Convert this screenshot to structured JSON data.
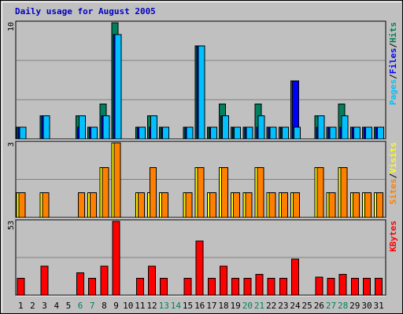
{
  "chart_data": {
    "type": "bar",
    "title": "Daily usage for August 2005",
    "categories": [
      "1",
      "2",
      "3",
      "4",
      "5",
      "6",
      "7",
      "8",
      "9",
      "10",
      "11",
      "12",
      "13",
      "14",
      "15",
      "16",
      "17",
      "18",
      "19",
      "20",
      "21",
      "22",
      "23",
      "24",
      "25",
      "26",
      "27",
      "28",
      "29",
      "30",
      "31"
    ],
    "weekend_days": [
      6,
      7,
      13,
      14,
      20,
      21,
      27,
      28
    ],
    "colors": {
      "hits": "#00805c",
      "files": "#0000ff",
      "pages": "#00c0ff",
      "visits": "#ffff00",
      "sites": "#ff8000",
      "kbytes": "#ff0000",
      "weekend_label": "#00805c",
      "weekday_label": "#000000"
    },
    "panels": [
      {
        "id": "hits-files-pages",
        "ymax_label": "10",
        "ylim": [
          0,
          10
        ],
        "legend": [
          {
            "key": "pages",
            "label": "Pages"
          },
          {
            "key": "files",
            "label": "Files"
          },
          {
            "key": "hits",
            "label": "Hits"
          }
        ],
        "series": [
          {
            "key": "hits",
            "values": [
              1,
              0,
              2,
              0,
              0,
              2,
              1,
              3,
              10,
              0,
              1,
              2,
              1,
              0,
              1,
              8,
              1,
              3,
              1,
              1,
              3,
              1,
              1,
              5,
              0,
              2,
              1,
              3,
              1,
              1,
              1
            ]
          },
          {
            "key": "files",
            "values": [
              1,
              0,
              2,
              0,
              0,
              1,
              1,
              2,
              9,
              0,
              1,
              1,
              1,
              0,
              1,
              8,
              1,
              2,
              1,
              1,
              1,
              1,
              1,
              5,
              0,
              1,
              1,
              1,
              1,
              1,
              1
            ]
          },
          {
            "key": "pages",
            "values": [
              1,
              0,
              2,
              0,
              0,
              2,
              1,
              2,
              9,
              0,
              1,
              2,
              1,
              0,
              1,
              8,
              1,
              2,
              1,
              1,
              2,
              1,
              1,
              1,
              0,
              2,
              1,
              2,
              1,
              1,
              1
            ]
          }
        ]
      },
      {
        "id": "visits-sites",
        "ymax_label": "3",
        "ylim": [
          0,
          3
        ],
        "legend": [
          {
            "key": "sites",
            "label": "Sites"
          },
          {
            "key": "visits",
            "label": "Visits"
          }
        ],
        "series": [
          {
            "key": "visits",
            "values": [
              1,
              0,
              1,
              0,
              0,
              0,
              1,
              2,
              3,
              0,
              1,
              1,
              1,
              0,
              1,
              2,
              1,
              2,
              1,
              1,
              2,
              1,
              1,
              1,
              0,
              2,
              1,
              2,
              1,
              1,
              1
            ]
          },
          {
            "key": "sites",
            "values": [
              1,
              0,
              1,
              0,
              0,
              1,
              1,
              2,
              3,
              0,
              1,
              2,
              1,
              0,
              1,
              2,
              1,
              2,
              1,
              1,
              2,
              1,
              1,
              1,
              0,
              2,
              1,
              2,
              1,
              1,
              1
            ]
          }
        ]
      },
      {
        "id": "kbytes",
        "ymax_label": "53",
        "ylim": [
          0,
          53
        ],
        "legend": [
          {
            "key": "kbytes",
            "label": "KBytes"
          }
        ],
        "series": [
          {
            "key": "kbytes",
            "values": [
              12,
              0,
              21,
              0,
              0,
              16,
              12,
              21,
              53,
              0,
              12,
              21,
              12,
              0,
              12,
              39,
              12,
              21,
              12,
              12,
              15,
              12,
              12,
              26,
              0,
              13,
              12,
              15,
              12,
              12,
              12
            ]
          }
        ]
      }
    ]
  }
}
